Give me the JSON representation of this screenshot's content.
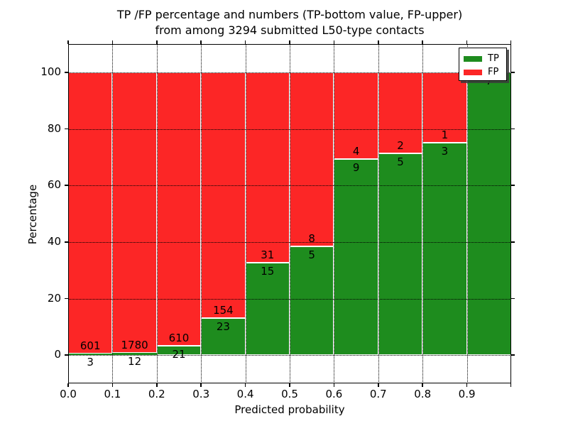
{
  "title": {
    "line1": "TP /FP percentage and numbers (TP-bottom value, FP-upper)",
    "line2": "from among 3294 submitted L50-type contacts"
  },
  "axes": {
    "xlabel": "Predicted probability",
    "ylabel": "Percentage",
    "xtick_labels": [
      "0.0",
      "0.1",
      "0.2",
      "0.3",
      "0.4",
      "0.5",
      "0.6",
      "0.7",
      "0.8",
      "0.9"
    ],
    "xtick_values": [
      0.0,
      0.1,
      0.2,
      0.3,
      0.4,
      0.5,
      0.6,
      0.7,
      0.8,
      0.9
    ],
    "extra_unlabeled_xtick": 1.0,
    "ytick_labels": [
      "0",
      "20",
      "40",
      "60",
      "80",
      "100"
    ],
    "ytick_values": [
      0,
      20,
      40,
      60,
      80,
      100
    ],
    "xlim": [
      0.0,
      1.0
    ],
    "ylim": [
      -10,
      110
    ],
    "grid_style": "dotted"
  },
  "legend": {
    "position": "upper right",
    "items": [
      {
        "label": "TP",
        "color": "#1e8c1e"
      },
      {
        "label": "FP",
        "color": "#fc2626"
      }
    ]
  },
  "chart_data": {
    "type": "bar",
    "stacked": true,
    "note": "Each bin shows TP% (green, bottom) and FP% (red, top) of that bin; labels are raw counts (FP upper label, TP lower label)",
    "bins": [
      [
        0.0,
        0.1
      ],
      [
        0.1,
        0.2
      ],
      [
        0.2,
        0.3
      ],
      [
        0.3,
        0.4
      ],
      [
        0.4,
        0.5
      ],
      [
        0.5,
        0.6
      ],
      [
        0.6,
        0.7
      ],
      [
        0.7,
        0.8
      ],
      [
        0.8,
        0.9
      ],
      [
        0.9,
        1.0
      ]
    ],
    "series": [
      {
        "name": "TP",
        "color": "#1e8c1e",
        "counts": [
          3,
          12,
          21,
          23,
          15,
          5,
          9,
          5,
          3,
          7
        ]
      },
      {
        "name": "FP",
        "color": "#fc2626",
        "counts": [
          601,
          1780,
          610,
          154,
          31,
          8,
          4,
          2,
          1,
          0
        ]
      }
    ],
    "total_contacts": 3294,
    "bar_edge_color": "#ffffff",
    "xlabel": "Predicted probability",
    "ylabel": "Percentage",
    "ylim": [
      -10,
      110
    ],
    "xlim": [
      0,
      1
    ],
    "grid": true,
    "legend_position": "upper right"
  }
}
